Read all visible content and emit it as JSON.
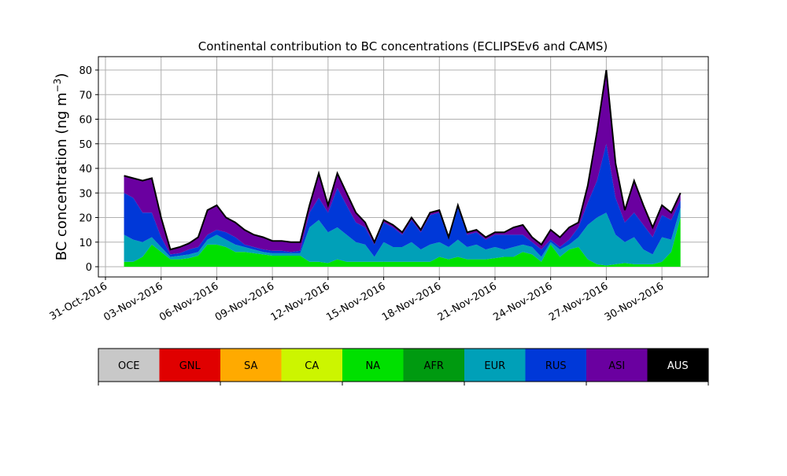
{
  "chart_data": {
    "type": "area",
    "stacked": true,
    "title": "Continental contribution to BC concentrations (ECLIPSEv6 and CAMS)",
    "ylabel": "BC concentration (ng m",
    "ylabel_exp": "−3",
    "ylabel_close": ")",
    "xlabel": "",
    "ylim": [
      -4,
      85
    ],
    "xlim_days_from_31oct": [
      -0.4,
      32.5
    ],
    "grid": true,
    "yticks": [
      0,
      10,
      20,
      30,
      40,
      50,
      60,
      70,
      80
    ],
    "xticks": [
      {
        "day": 0,
        "label": "31-Oct-2016"
      },
      {
        "day": 3,
        "label": "03-Nov-2016"
      },
      {
        "day": 6,
        "label": "06-Nov-2016"
      },
      {
        "day": 9,
        "label": "09-Nov-2016"
      },
      {
        "day": 12,
        "label": "12-Nov-2016"
      },
      {
        "day": 15,
        "label": "15-Nov-2016"
      },
      {
        "day": 18,
        "label": "18-Nov-2016"
      },
      {
        "day": 21,
        "label": "21-Nov-2016"
      },
      {
        "day": 24,
        "label": "24-Nov-2016"
      },
      {
        "day": 27,
        "label": "27-Nov-2016"
      },
      {
        "day": 30,
        "label": "30-Nov-2016"
      }
    ],
    "x_days_from_31oct": [
      1.0,
      1.5,
      2.0,
      2.5,
      3.0,
      3.5,
      4.0,
      4.5,
      5.0,
      5.5,
      6.0,
      6.5,
      7.0,
      7.5,
      8.0,
      8.5,
      9.0,
      9.5,
      10.0,
      10.5,
      11.0,
      11.5,
      12.0,
      12.5,
      13.0,
      13.5,
      14.0,
      14.5,
      15.0,
      15.5,
      16.0,
      16.5,
      17.0,
      17.5,
      18.0,
      18.5,
      19.0,
      19.5,
      20.0,
      20.5,
      21.0,
      21.5,
      22.0,
      22.5,
      23.0,
      23.5,
      24.0,
      24.5,
      25.0,
      25.5,
      26.0,
      26.5,
      27.0,
      27.5,
      28.0,
      28.5,
      29.0,
      29.5,
      30.0,
      30.5,
      31.0
    ],
    "series": [
      {
        "name": "NA",
        "color": "#00e000",
        "values": [
          2,
          2,
          4,
          9,
          6,
          3,
          3,
          3.5,
          4.5,
          9,
          9,
          8,
          6,
          6,
          5.5,
          5,
          4.5,
          4.5,
          4.5,
          4.5,
          2,
          2,
          1.5,
          3,
          2,
          2,
          2,
          2,
          2,
          2,
          2,
          2,
          2,
          2,
          4,
          3,
          4,
          3,
          3,
          3,
          3.5,
          4,
          4,
          6,
          5,
          2,
          9,
          4,
          7,
          8,
          3,
          1,
          0.5,
          1,
          1.5,
          1,
          1,
          1,
          2,
          6,
          20
        ]
      },
      {
        "name": "EUR",
        "color": "#00a0b8",
        "values": [
          11,
          9,
          6,
          3,
          2,
          1,
          1.5,
          1.5,
          1.5,
          2,
          4,
          3,
          3,
          2,
          1.5,
          1,
          1,
          1,
          1,
          1,
          14,
          17,
          12.5,
          13,
          11,
          8,
          7,
          2,
          8,
          6,
          6,
          8,
          5,
          7,
          6,
          5,
          7,
          5,
          6,
          4,
          4.5,
          3,
          4,
          3,
          3,
          2,
          1,
          3,
          2,
          4,
          14,
          19,
          21.5,
          12,
          8.5,
          11,
          6,
          4,
          10,
          5,
          4
        ]
      },
      {
        "name": "RUS",
        "color": "#0038d8",
        "values": [
          17,
          17,
          12,
          10,
          4,
          1,
          1,
          2,
          2,
          2,
          2,
          3,
          3,
          1,
          1,
          1,
          1,
          1,
          0.5,
          1,
          6,
          9,
          8,
          16,
          12,
          8,
          7,
          5,
          8,
          8,
          5,
          9,
          7,
          12,
          12,
          3,
          13,
          5,
          5,
          4,
          5,
          6,
          5,
          4,
          2,
          3,
          1,
          1,
          2,
          4,
          9,
          15,
          28,
          15,
          8,
          10,
          10,
          7,
          9,
          8,
          3
        ]
      },
      {
        "name": "ASI",
        "color": "#6a00a0",
        "values": [
          7,
          8,
          13,
          14,
          8,
          2,
          2.5,
          2.5,
          4,
          10,
          10,
          6,
          6,
          6,
          5,
          5,
          4,
          4,
          4,
          3.5,
          3,
          10,
          3,
          6,
          5,
          4,
          2,
          1,
          1,
          1,
          1,
          1,
          1,
          1,
          1,
          1,
          1,
          1,
          1,
          1,
          1,
          1,
          3,
          4,
          2,
          2,
          4,
          4,
          5,
          2,
          7,
          20,
          30,
          14,
          5,
          13,
          8,
          4,
          4,
          3,
          3
        ]
      }
    ],
    "legend": [
      {
        "name": "OCE",
        "color": "#c8c8c8",
        "text_color": "#000000"
      },
      {
        "name": "GNL",
        "color": "#e00000",
        "text_color": "#000000"
      },
      {
        "name": "SA",
        "color": "#ffaa00",
        "text_color": "#000000"
      },
      {
        "name": "CA",
        "color": "#ccf500",
        "text_color": "#000000"
      },
      {
        "name": "NA",
        "color": "#00e000",
        "text_color": "#000000"
      },
      {
        "name": "AFR",
        "color": "#009a10",
        "text_color": "#000000"
      },
      {
        "name": "EUR",
        "color": "#00a0b8",
        "text_color": "#000000"
      },
      {
        "name": "RUS",
        "color": "#0038d8",
        "text_color": "#000000"
      },
      {
        "name": "ASI",
        "color": "#6a00a0",
        "text_color": "#000000"
      },
      {
        "name": "AUS",
        "color": "#000000",
        "text_color": "#ffffff"
      }
    ],
    "legend_placement": "bottom"
  }
}
